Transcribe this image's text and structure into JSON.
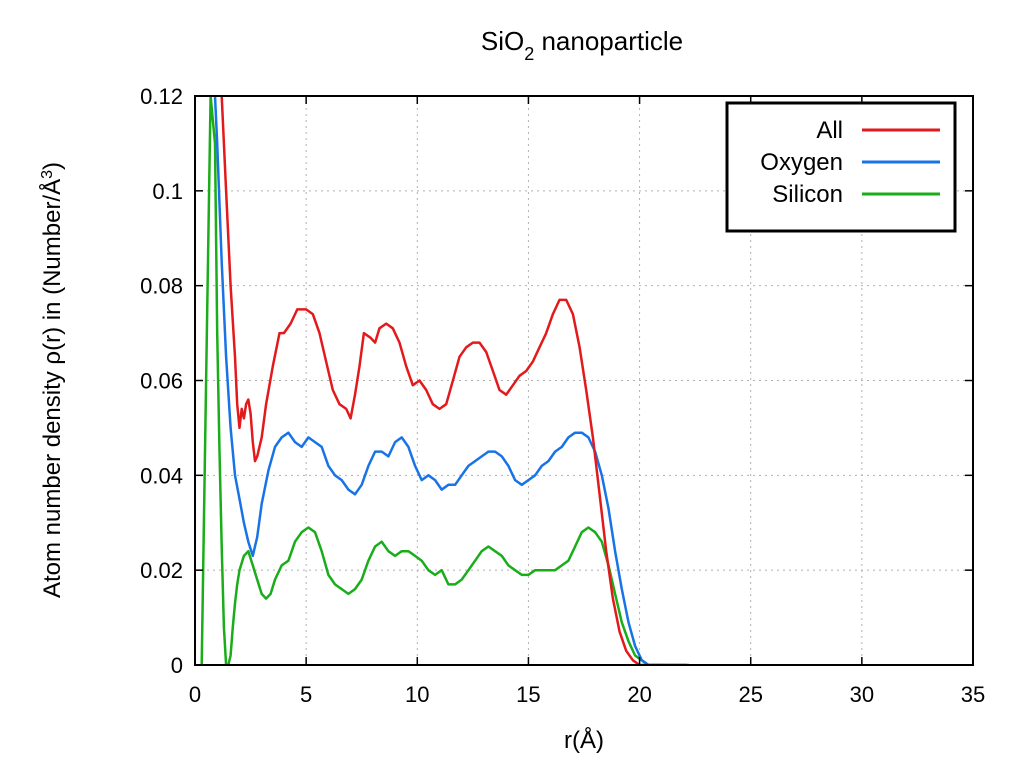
{
  "chart_data": {
    "type": "line",
    "title_main": "SiO",
    "title_sub": "2",
    "title_rest": " nanoparticle",
    "xlabel": "r(Å)",
    "ylabel_main": "Atom number density ρ(r) in (Number/Å",
    "ylabel_sup": "3",
    "ylabel_end": ")",
    "xlim": [
      0,
      35
    ],
    "ylim": [
      0,
      0.12
    ],
    "x_ticks": [
      "0",
      "5",
      "10",
      "15",
      "20",
      "25",
      "30",
      "35"
    ],
    "y_ticks": [
      "0",
      "0.02",
      "0.04",
      "0.06",
      "0.08",
      "0.1",
      "0.12"
    ],
    "grid": true,
    "legend_position": "top-right",
    "series": [
      {
        "name": "All",
        "color": "#e31a1c",
        "x": [
          1.0,
          1.2,
          1.4,
          1.6,
          1.8,
          1.9,
          2.0,
          2.1,
          2.2,
          2.3,
          2.4,
          2.5,
          2.6,
          2.7,
          2.8,
          3.0,
          3.2,
          3.5,
          3.8,
          4.0,
          4.3,
          4.6,
          5.0,
          5.3,
          5.6,
          5.9,
          6.2,
          6.5,
          6.8,
          7.0,
          7.2,
          7.4,
          7.6,
          7.9,
          8.1,
          8.3,
          8.6,
          8.9,
          9.2,
          9.5,
          9.8,
          10.1,
          10.4,
          10.7,
          11.0,
          11.3,
          11.6,
          11.9,
          12.2,
          12.5,
          12.8,
          13.1,
          13.4,
          13.7,
          14.0,
          14.3,
          14.6,
          14.9,
          15.2,
          15.5,
          15.8,
          16.1,
          16.4,
          16.7,
          17.0,
          17.3,
          17.6,
          17.9,
          18.2,
          18.5,
          18.8,
          19.1,
          19.4,
          19.7,
          20.0,
          20.3,
          20.6,
          20.9,
          21.2,
          21.5,
          21.8,
          22.1
        ],
        "y": [
          0.125,
          0.12,
          0.1,
          0.08,
          0.065,
          0.055,
          0.05,
          0.054,
          0.052,
          0.055,
          0.056,
          0.053,
          0.047,
          0.043,
          0.044,
          0.048,
          0.055,
          0.063,
          0.07,
          0.07,
          0.072,
          0.075,
          0.075,
          0.074,
          0.07,
          0.064,
          0.058,
          0.055,
          0.054,
          0.052,
          0.057,
          0.063,
          0.07,
          0.069,
          0.068,
          0.071,
          0.072,
          0.071,
          0.068,
          0.063,
          0.059,
          0.06,
          0.058,
          0.055,
          0.054,
          0.055,
          0.06,
          0.065,
          0.067,
          0.068,
          0.068,
          0.066,
          0.062,
          0.058,
          0.057,
          0.059,
          0.061,
          0.062,
          0.064,
          0.067,
          0.07,
          0.074,
          0.077,
          0.077,
          0.074,
          0.067,
          0.058,
          0.048,
          0.036,
          0.024,
          0.014,
          0.007,
          0.003,
          0.001,
          0.0,
          0.0,
          0.0,
          0.0,
          0.0,
          0.0,
          0.0,
          0.0
        ]
      },
      {
        "name": "Oxygen",
        "color": "#1874e6",
        "x": [
          0.9,
          1.0,
          1.2,
          1.4,
          1.6,
          1.8,
          2.0,
          2.2,
          2.4,
          2.6,
          2.8,
          3.0,
          3.3,
          3.6,
          3.9,
          4.2,
          4.5,
          4.8,
          5.1,
          5.4,
          5.7,
          6.0,
          6.3,
          6.6,
          6.9,
          7.2,
          7.5,
          7.8,
          8.1,
          8.4,
          8.7,
          9.0,
          9.3,
          9.6,
          9.9,
          10.2,
          10.5,
          10.8,
          11.1,
          11.4,
          11.7,
          12.0,
          12.3,
          12.6,
          12.9,
          13.2,
          13.5,
          13.8,
          14.1,
          14.4,
          14.7,
          15.0,
          15.3,
          15.6,
          15.9,
          16.2,
          16.5,
          16.8,
          17.1,
          17.4,
          17.7,
          18.0,
          18.3,
          18.6,
          18.9,
          19.2,
          19.5,
          19.8,
          20.1,
          20.4,
          20.7,
          21.0,
          21.3,
          21.6,
          21.9,
          22.2
        ],
        "y": [
          0.12,
          0.11,
          0.085,
          0.065,
          0.05,
          0.04,
          0.035,
          0.03,
          0.026,
          0.023,
          0.027,
          0.034,
          0.041,
          0.046,
          0.048,
          0.049,
          0.047,
          0.046,
          0.048,
          0.047,
          0.046,
          0.042,
          0.04,
          0.039,
          0.037,
          0.036,
          0.038,
          0.042,
          0.045,
          0.045,
          0.044,
          0.047,
          0.048,
          0.046,
          0.042,
          0.039,
          0.04,
          0.039,
          0.037,
          0.038,
          0.038,
          0.04,
          0.042,
          0.043,
          0.044,
          0.045,
          0.045,
          0.044,
          0.042,
          0.039,
          0.038,
          0.039,
          0.04,
          0.042,
          0.043,
          0.045,
          0.046,
          0.048,
          0.049,
          0.049,
          0.048,
          0.045,
          0.04,
          0.033,
          0.024,
          0.016,
          0.009,
          0.004,
          0.001,
          0.0,
          0.0,
          0.0,
          0.0,
          0.0,
          0.0,
          0.0
        ]
      },
      {
        "name": "Silicon",
        "color": "#1aad1a",
        "x": [
          0.3,
          0.5,
          0.7,
          0.9,
          1.0,
          1.1,
          1.2,
          1.3,
          1.4,
          1.5,
          1.6,
          1.7,
          1.8,
          1.9,
          2.0,
          2.2,
          2.4,
          2.6,
          2.8,
          3.0,
          3.2,
          3.4,
          3.6,
          3.9,
          4.2,
          4.5,
          4.8,
          5.1,
          5.4,
          5.7,
          6.0,
          6.3,
          6.6,
          6.9,
          7.2,
          7.5,
          7.8,
          8.1,
          8.4,
          8.7,
          9.0,
          9.3,
          9.6,
          9.9,
          10.2,
          10.5,
          10.8,
          11.1,
          11.4,
          11.7,
          12.0,
          12.3,
          12.6,
          12.9,
          13.2,
          13.5,
          13.8,
          14.1,
          14.4,
          14.7,
          15.0,
          15.3,
          15.6,
          15.9,
          16.2,
          16.5,
          16.8,
          17.1,
          17.4,
          17.7,
          18.0,
          18.3,
          18.6,
          18.9,
          19.2,
          19.5,
          19.8,
          20.1,
          20.4,
          20.7,
          21.0
        ],
        "y": [
          0.0,
          0.06,
          0.12,
          0.11,
          0.07,
          0.045,
          0.025,
          0.008,
          0.0,
          0.0,
          0.002,
          0.008,
          0.013,
          0.017,
          0.02,
          0.023,
          0.024,
          0.021,
          0.018,
          0.015,
          0.014,
          0.015,
          0.018,
          0.021,
          0.022,
          0.026,
          0.028,
          0.029,
          0.028,
          0.024,
          0.019,
          0.017,
          0.016,
          0.015,
          0.016,
          0.018,
          0.022,
          0.025,
          0.026,
          0.024,
          0.023,
          0.024,
          0.024,
          0.023,
          0.022,
          0.02,
          0.019,
          0.02,
          0.017,
          0.017,
          0.018,
          0.02,
          0.022,
          0.024,
          0.025,
          0.024,
          0.023,
          0.021,
          0.02,
          0.019,
          0.019,
          0.02,
          0.02,
          0.02,
          0.02,
          0.021,
          0.022,
          0.025,
          0.028,
          0.029,
          0.028,
          0.026,
          0.021,
          0.015,
          0.009,
          0.005,
          0.002,
          0.001,
          0.0,
          0.0,
          0.0
        ]
      }
    ]
  }
}
